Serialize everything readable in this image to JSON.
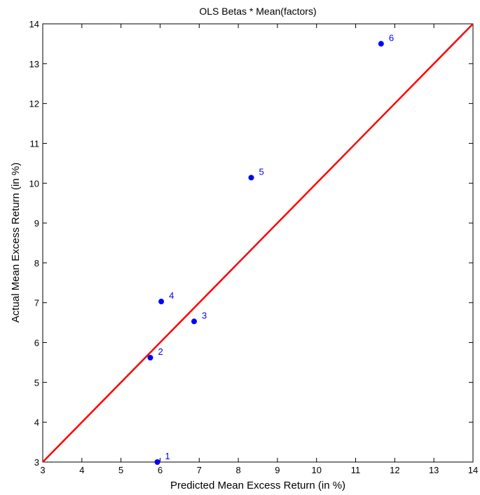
{
  "chart_data": {
    "type": "scatter",
    "title": "OLS Betas * Mean(factors)",
    "xlabel": "Predicted Mean Excess Return (in %)",
    "ylabel": "Actual Mean Excess Return (in %)",
    "xlim": [
      3,
      14
    ],
    "ylim": [
      3,
      14
    ],
    "xticks": [
      3,
      4,
      5,
      6,
      7,
      8,
      9,
      10,
      11,
      12,
      13,
      14
    ],
    "yticks": [
      3,
      4,
      5,
      6,
      7,
      8,
      9,
      10,
      11,
      12,
      13,
      14
    ],
    "grid": false,
    "points": [
      {
        "label": "1",
        "x": 5.93,
        "y": 3.0
      },
      {
        "label": "2",
        "x": 5.75,
        "y": 5.62
      },
      {
        "label": "3",
        "x": 6.87,
        "y": 6.53
      },
      {
        "label": "4",
        "x": 6.03,
        "y": 7.03
      },
      {
        "label": "5",
        "x": 8.33,
        "y": 10.14
      },
      {
        "label": "6",
        "x": 11.65,
        "y": 13.5
      }
    ],
    "reference_line": {
      "x": [
        3,
        14
      ],
      "y": [
        3,
        14
      ]
    },
    "colors": {
      "points": "#0000ff",
      "point_labels": "#0000ff",
      "line": "#ff0000",
      "axes": "#000000"
    }
  }
}
